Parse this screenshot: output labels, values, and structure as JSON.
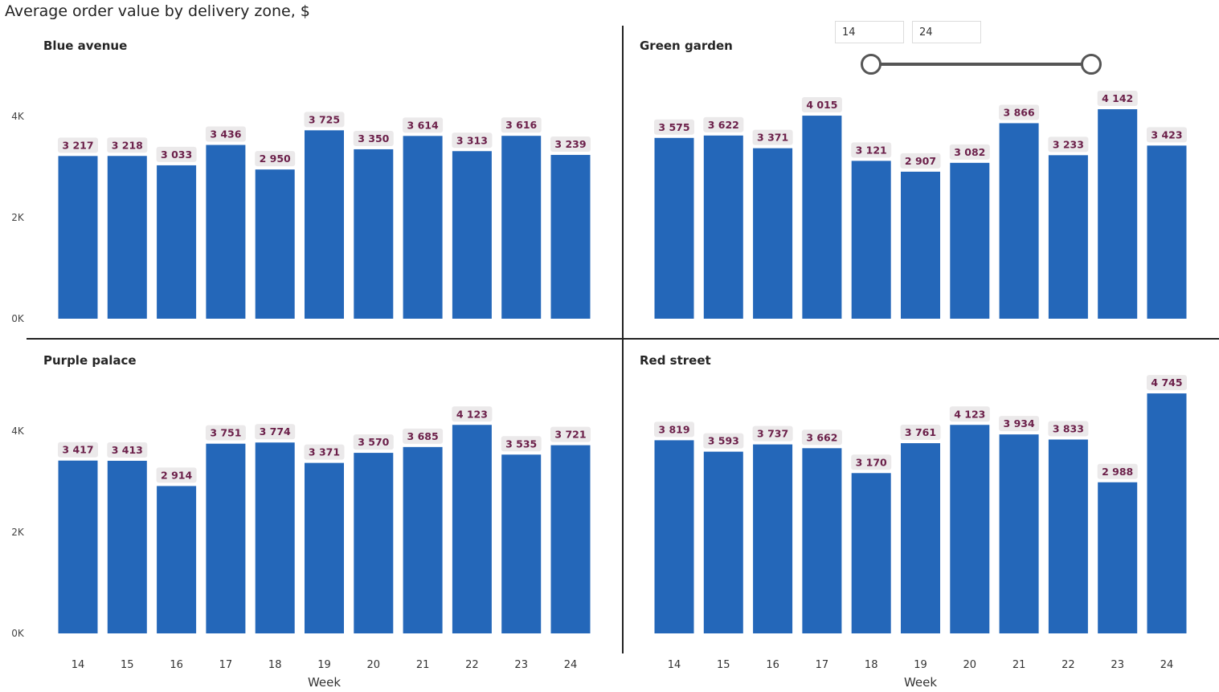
{
  "title": "Average order value by delivery zone, $",
  "slider": {
    "min_value": "14",
    "max_value": "24"
  },
  "colors": {
    "bar": "#2467b9",
    "label_bg": "#ebe9ea",
    "label_text": "#6b1f49",
    "divider": "#222222"
  },
  "chart_data": [
    {
      "type": "bar",
      "title": "Blue avenue",
      "categories": [
        "14",
        "15",
        "16",
        "17",
        "18",
        "19",
        "20",
        "21",
        "22",
        "23",
        "24"
      ],
      "values": [
        3217,
        3218,
        3033,
        3436,
        2950,
        3725,
        3350,
        3614,
        3313,
        3616,
        3239
      ],
      "value_labels": [
        "3 217",
        "3 218",
        "3 033",
        "3 436",
        "2 950",
        "3 725",
        "3 350",
        "3 614",
        "3 313",
        "3 616",
        "3 239"
      ],
      "yticks": [
        "0K",
        "2K",
        "4K"
      ],
      "ylim": [
        0,
        4800
      ],
      "xlabel": "Week"
    },
    {
      "type": "bar",
      "title": "Green garden",
      "categories": [
        "14",
        "15",
        "16",
        "17",
        "18",
        "19",
        "20",
        "21",
        "22",
        "23",
        "24"
      ],
      "values": [
        3575,
        3622,
        3371,
        4015,
        3121,
        2907,
        3082,
        3866,
        3233,
        4142,
        3423
      ],
      "value_labels": [
        "3 575",
        "3 622",
        "3 371",
        "4 015",
        "3 121",
        "2 907",
        "3 082",
        "3 866",
        "3 233",
        "4 142",
        "3 423"
      ],
      "yticks": [
        "0K",
        "2K",
        "4K"
      ],
      "ylim": [
        0,
        4800
      ],
      "xlabel": "Week"
    },
    {
      "type": "bar",
      "title": "Purple palace",
      "categories": [
        "14",
        "15",
        "16",
        "17",
        "18",
        "19",
        "20",
        "21",
        "22",
        "23",
        "24"
      ],
      "values": [
        3417,
        3413,
        2914,
        3751,
        3774,
        3371,
        3570,
        3685,
        4123,
        3535,
        3721
      ],
      "value_labels": [
        "3 417",
        "3 413",
        "2 914",
        "3 751",
        "3 774",
        "3 371",
        "3 570",
        "3 685",
        "4 123",
        "3 535",
        "3 721"
      ],
      "yticks": [
        "0K",
        "2K",
        "4K"
      ],
      "ylim": [
        0,
        4800
      ],
      "xlabel": "Week"
    },
    {
      "type": "bar",
      "title": "Red street",
      "categories": [
        "14",
        "15",
        "16",
        "17",
        "18",
        "19",
        "20",
        "21",
        "22",
        "23",
        "24"
      ],
      "values": [
        3819,
        3593,
        3737,
        3662,
        3170,
        3761,
        4123,
        3934,
        3833,
        2988,
        4745
      ],
      "value_labels": [
        "3 819",
        "3 593",
        "3 737",
        "3 662",
        "3 170",
        "3 761",
        "4 123",
        "3 934",
        "3 833",
        "2 988",
        "4 745"
      ],
      "yticks": [
        "0K",
        "2K",
        "4K"
      ],
      "ylim": [
        0,
        4800
      ],
      "xlabel": "Week"
    }
  ]
}
